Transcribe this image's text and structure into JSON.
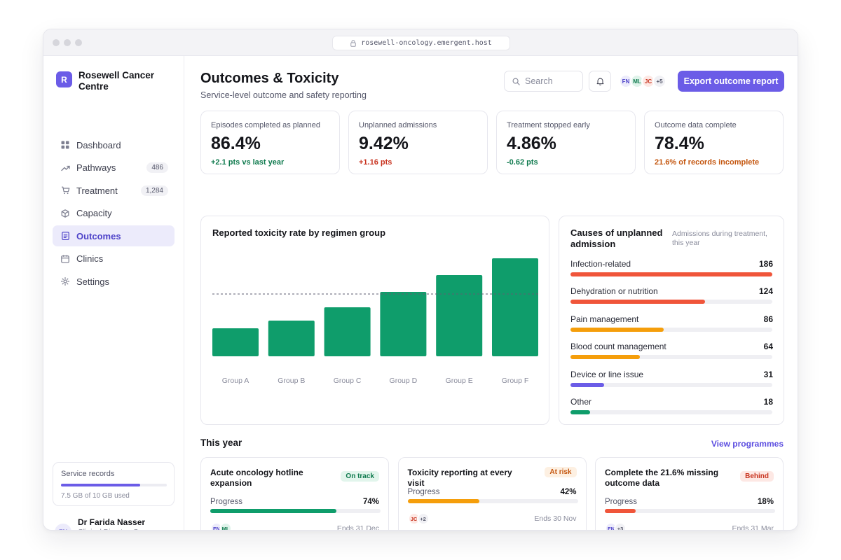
{
  "browser": {
    "url": "rosewell-oncology.emergent.host"
  },
  "brand": {
    "initial": "R",
    "name": "Rosewell Cancer Centre"
  },
  "nav": [
    {
      "label": "Dashboard",
      "icon": "grid-icon",
      "badge": null,
      "active": false
    },
    {
      "label": "Pathways",
      "icon": "trend-up-icon",
      "badge": "486",
      "active": false
    },
    {
      "label": "Treatment",
      "icon": "cart-icon",
      "badge": "1,284",
      "active": false
    },
    {
      "label": "Capacity",
      "icon": "box-icon",
      "badge": null,
      "active": false
    },
    {
      "label": "Outcomes",
      "icon": "document-icon",
      "badge": null,
      "active": true
    },
    {
      "label": "Clinics",
      "icon": "calendar-icon",
      "badge": null,
      "active": false
    },
    {
      "label": "Settings",
      "icon": "gear-icon",
      "badge": null,
      "active": false
    }
  ],
  "storage": {
    "title": "Service records",
    "text": "7.5 GB of 10 GB used",
    "used_fraction": 0.75
  },
  "user": {
    "initials": "FN",
    "name": "Dr Farida Nasser",
    "role": "Clinical Director, Cancer Services"
  },
  "header": {
    "title": "Outcomes & Toxicity",
    "subtitle": "Service-level outcome and safety reporting",
    "search_placeholder": "Search",
    "avatars": [
      "FN",
      "ML",
      "JC",
      "+5"
    ],
    "export_label": "Export outcome report"
  },
  "kpis": [
    {
      "label": "Episodes completed as planned",
      "value": "86.4%",
      "delta": "+2.1 pts vs last year",
      "tone": "positive"
    },
    {
      "label": "Unplanned admissions",
      "value": "9.42%",
      "delta": "+1.16 pts",
      "tone": "negative"
    },
    {
      "label": "Treatment stopped early",
      "value": "4.86%",
      "delta": "-0.62 pts",
      "tone": "positive"
    },
    {
      "label": "Outcome data complete",
      "value": "78.4%",
      "delta": "21.6% of records incomplete",
      "tone": "warning"
    }
  ],
  "toxicity_panel": {
    "title": "Reported toxicity rate by regimen group"
  },
  "chart_data": {
    "type": "bar",
    "title": "Reported toxicity rate by regimen group",
    "categories": [
      "Group A",
      "Group B",
      "Group C",
      "Group D",
      "Group E",
      "Group F"
    ],
    "values": [
      20,
      25.5,
      35,
      46,
      58,
      70
    ],
    "ylim": [
      0,
      80
    ],
    "reference_line": 44.5,
    "bar_color": "#0f9d6b",
    "grid": false,
    "legend": "none"
  },
  "causes_panel": {
    "title": "Causes of unplanned admission",
    "subtitle": "Admissions during treatment, this year",
    "max": 186,
    "items": [
      {
        "label": "Infection-related",
        "value": 186,
        "color": "#f0553a"
      },
      {
        "label": "Dehydration or nutrition",
        "value": 124,
        "color": "#f0553a"
      },
      {
        "label": "Pain management",
        "value": 86,
        "color": "#f59e0b"
      },
      {
        "label": "Blood count management",
        "value": 64,
        "color": "#f59e0b"
      },
      {
        "label": "Device or line issue",
        "value": 31,
        "color": "#6b5ce7"
      },
      {
        "label": "Other",
        "value": 18,
        "color": "#0f9d6b"
      }
    ]
  },
  "programmes": {
    "section_title": "This year",
    "view_link": "View programmes",
    "items": [
      {
        "title": "Acute oncology hotline expansion",
        "status": "On track",
        "status_tone": "green",
        "progress_label": "Progress",
        "progress_text": "74%",
        "progress": 0.74,
        "bar_color": "#0f9d6b",
        "avatars": [
          "FN",
          "ML"
        ],
        "end": "Ends 31 Dec"
      },
      {
        "title": "Toxicity reporting at every visit",
        "status": "At risk",
        "status_tone": "orange",
        "progress_label": "Progress",
        "progress_text": "42%",
        "progress": 0.42,
        "bar_color": "#f59e0b",
        "avatars": [
          "JC",
          "+2"
        ],
        "end": "Ends 30 Nov"
      },
      {
        "title": "Complete the 21.6% missing outcome data",
        "status": "Behind",
        "status_tone": "red",
        "progress_label": "Progress",
        "progress_text": "18%",
        "progress": 0.18,
        "bar_color": "#f0553a",
        "avatars": [
          "FN",
          "+3"
        ],
        "end": "Ends 31 Mar"
      }
    ]
  },
  "colors": {
    "accent": "#6b5ce7",
    "positive": "#0f7a4e",
    "negative": "#c8331f",
    "warning": "#c4560f"
  }
}
